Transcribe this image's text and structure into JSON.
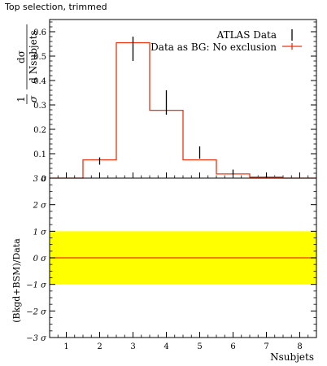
{
  "chart_data": [
    {
      "type": "bar",
      "title": "Top selection, trimmed",
      "xlabel": "Nsubjets",
      "ylabel": "1/σ dσ/d Nsubjets",
      "ylabel_parts": {
        "prefix": "1",
        "sigma": "σ",
        "numerator": "dσ",
        "denominator": "d Nsubjets"
      },
      "xlim": [
        0.5,
        8.5
      ],
      "ylim": [
        0,
        0.65
      ],
      "yticks": [
        0.1,
        0.2,
        0.3,
        0.4,
        0.5,
        0.6
      ],
      "ytick_labels": [
        "0.1",
        "0.2",
        "0.3",
        "0.4",
        "0.5",
        "0.6"
      ],
      "y0_label": "0",
      "legend_position": "top-right",
      "series": [
        {
          "name": "ATLAS Data",
          "style": "points-with-error-bars",
          "color": "#000000",
          "x": [
            2,
            3,
            4,
            5,
            6,
            7
          ],
          "y": [
            0.07,
            0.53,
            0.31,
            0.105,
            0.025,
            0.006
          ],
          "err": [
            0.015,
            0.05,
            0.05,
            0.025,
            0.01,
            0.004
          ]
        },
        {
          "name": "Data as BG: No exclusion",
          "style": "histogram",
          "color": "#ee3311",
          "edges": [
            0.5,
            1.5,
            2.5,
            3.5,
            4.5,
            5.5,
            6.5,
            7.5,
            8.5
          ],
          "values": [
            0.0,
            0.075,
            0.555,
            0.278,
            0.075,
            0.017,
            0.004,
            0.0
          ]
        }
      ]
    },
    {
      "type": "line",
      "ylabel": "(Bkgd+BSM)/Data",
      "xlabel": "Nsubjets",
      "xlim": [
        0.5,
        8.5
      ],
      "ylim": [
        -3,
        3
      ],
      "xticks": [
        1,
        2,
        3,
        4,
        5,
        6,
        7,
        8
      ],
      "xtick_labels": [
        "1",
        "2",
        "3",
        "4",
        "5",
        "6",
        "7",
        "8"
      ],
      "yticks": [
        -3,
        -2,
        -1,
        0,
        1,
        2,
        3
      ],
      "ytick_labels": [
        "−3 σ",
        "−2 σ",
        "−1 σ",
        "0 σ",
        "1 σ",
        "2 σ",
        "3 σ"
      ],
      "band": {
        "from": -1,
        "to": 1,
        "color": "#ffff00"
      },
      "series": [
        {
          "color": "#ee3311",
          "x": [
            0.5,
            8.5
          ],
          "y": [
            0,
            0
          ]
        }
      ]
    }
  ]
}
